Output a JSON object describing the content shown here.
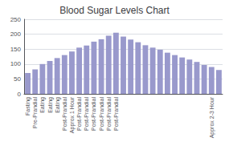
{
  "chart_data": {
    "type": "bar",
    "title": "Blood Sugar Levels Chart",
    "categories": [
      "Fasting",
      "Pre-Prandial",
      "Eating",
      "Eating",
      "Eating",
      "Post-Prandial",
      "Approx 1 Hour",
      "Post-Prandial",
      "Post-Prandial",
      "Post-Prandial",
      "Post-Prandial",
      "Post-Prandial",
      "Post-Prandial",
      null,
      null,
      null,
      null,
      null,
      null,
      null,
      null,
      null,
      null,
      null,
      null,
      "Approx 2-3 Hour",
      null
    ],
    "values": [
      70,
      82,
      100,
      110,
      120,
      130,
      142,
      155,
      162,
      175,
      183,
      195,
      205,
      192,
      182,
      173,
      163,
      155,
      148,
      138,
      130,
      122,
      115,
      107,
      97,
      90,
      80
    ],
    "color": "#9999cc",
    "ylim": [
      0,
      250
    ],
    "yticks": [
      0,
      50,
      100,
      150,
      200,
      250
    ],
    "grid": true
  }
}
